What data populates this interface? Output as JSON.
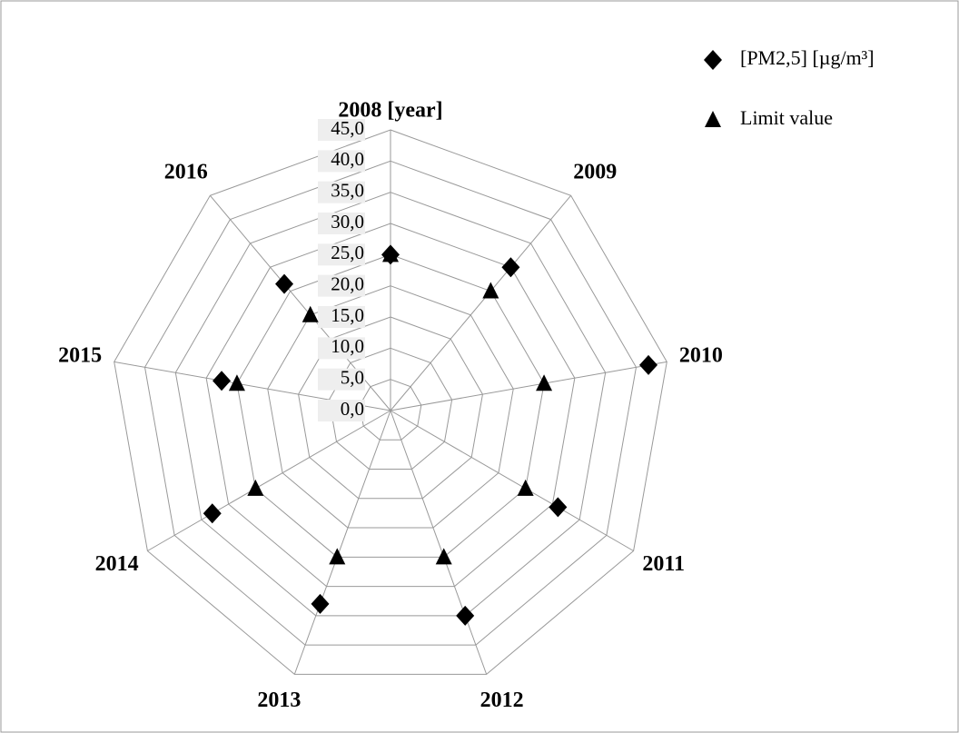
{
  "chart_data": {
    "type": "radar",
    "categories": [
      "2008 [year]",
      "2009",
      "2010",
      "2011",
      "2012",
      "2013",
      "2014",
      "2015",
      "2016"
    ],
    "series": [
      {
        "name": "Limit value",
        "color": "#000000",
        "marker": "triangle",
        "values": [
          25,
          25,
          25,
          25,
          25,
          25,
          25,
          25,
          20
        ]
      },
      {
        "name": "[PM2,5]  [µg/m³]",
        "color": "#000000",
        "marker": "diamond",
        "values": [
          25,
          30,
          42,
          31,
          35,
          33,
          33,
          27.5,
          26.5
        ]
      }
    ],
    "rlim": [
      0,
      45
    ],
    "rticks": [
      {
        "value": 0,
        "label": "0,0"
      },
      {
        "value": 5,
        "label": "5,0"
      },
      {
        "value": 10,
        "label": "10,0"
      },
      {
        "value": 15,
        "label": "15,0"
      },
      {
        "value": 20,
        "label": "20,0"
      },
      {
        "value": 25,
        "label": "25,0"
      },
      {
        "value": 30,
        "label": "30,0"
      },
      {
        "value": 35,
        "label": "35,0"
      },
      {
        "value": 40,
        "label": "40,0"
      },
      {
        "value": 45,
        "label": "45,0"
      }
    ],
    "grid": true,
    "legend": "upper right"
  }
}
